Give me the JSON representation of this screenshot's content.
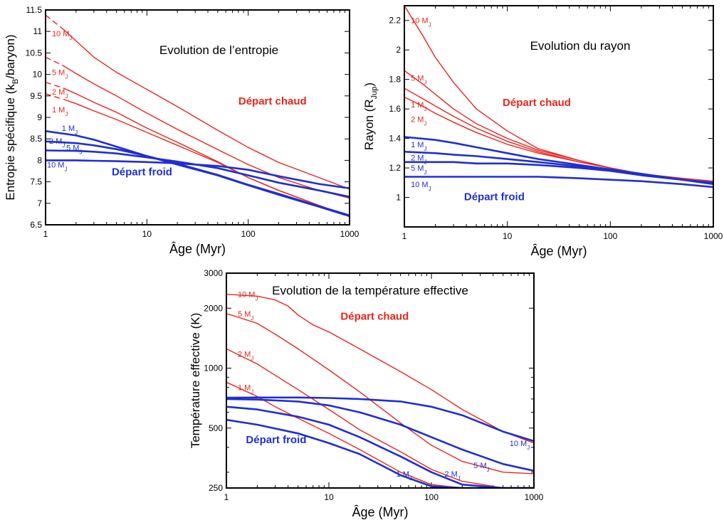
{
  "colors": {
    "hot": "#e8261c",
    "cold": "#1f2fd0",
    "axis": "#000000"
  },
  "chart_data": [
    {
      "type": "line",
      "title": "Evolution de l’entropie",
      "xlabel": "Âge (Myr)",
      "ylabel_main": "Entropie spécifique (k",
      "ylabel_sub": "B",
      "ylabel_tail": "/baryon)",
      "xscale": "log",
      "xlim": [
        1,
        1000
      ],
      "ylim": [
        6.5,
        11.5
      ],
      "xticks": [
        {
          "v": 1,
          "label": "1"
        },
        {
          "v": 10,
          "label": "10"
        },
        {
          "v": 100,
          "label": "100"
        },
        {
          "v": 1000,
          "label": "1000"
        }
      ],
      "yticks": [
        {
          "v": 6.5,
          "label": "6.5"
        },
        {
          "v": 7,
          "label": "7"
        },
        {
          "v": 7.5,
          "label": "7.5"
        },
        {
          "v": 8,
          "label": "8"
        },
        {
          "v": 8.5,
          "label": "8.5"
        },
        {
          "v": 9,
          "label": "9"
        },
        {
          "v": 9.5,
          "label": "9.5"
        },
        {
          "v": 10,
          "label": "10"
        },
        {
          "v": 10.5,
          "label": "10.5"
        },
        {
          "v": 11,
          "label": "11"
        },
        {
          "v": 11.5,
          "label": "11.5"
        }
      ],
      "annotations": [
        {
          "text": "Départ chaud",
          "group": "hot",
          "x": 80,
          "y": 9.3
        },
        {
          "text": "Départ froid",
          "group": "cold",
          "x": 4.5,
          "y": 7.65
        }
      ],
      "series": [
        {
          "label_main": "10 M",
          "label_sub": "J",
          "group": "hot",
          "label_at": [
            1.12,
            10.95
          ],
          "dashed_to": 1.8,
          "x": [
            1,
            1.5,
            2,
            3,
            5,
            10,
            20,
            50,
            100,
            200,
            500,
            1000
          ],
          "y": [
            11.38,
            11.05,
            10.78,
            10.4,
            10.05,
            9.65,
            9.25,
            8.7,
            8.3,
            7.95,
            7.6,
            7.33
          ]
        },
        {
          "label_main": "5 M",
          "label_sub": "J",
          "group": "hot",
          "label_at": [
            1.12,
            10.05
          ],
          "dashed_to": 1.8,
          "x": [
            1,
            1.5,
            2,
            3,
            5,
            10,
            20,
            50,
            100,
            200,
            500,
            1000
          ],
          "y": [
            10.4,
            10.2,
            10.02,
            9.78,
            9.5,
            9.1,
            8.72,
            8.25,
            7.9,
            7.6,
            7.3,
            7.12
          ]
        },
        {
          "label_main": "2 M",
          "label_sub": "J",
          "group": "hot",
          "label_at": [
            1.12,
            9.6
          ],
          "dashed_to": 1.8,
          "x": [
            1,
            1.5,
            2,
            3,
            5,
            10,
            20,
            50,
            100,
            200,
            500,
            1000
          ],
          "y": [
            9.82,
            9.68,
            9.55,
            9.35,
            9.12,
            8.75,
            8.42,
            7.97,
            7.6,
            7.3,
            6.95,
            6.7
          ]
        },
        {
          "label_main": "1 M",
          "label_sub": "J",
          "group": "hot",
          "label_at": [
            1.12,
            9.18
          ],
          "dashed_to": 1.8,
          "x": [
            1,
            1.5,
            2,
            3,
            5,
            10,
            20,
            50,
            100,
            200,
            500,
            1000
          ],
          "y": [
            9.55,
            9.42,
            9.32,
            9.15,
            8.95,
            8.65,
            8.35,
            7.95,
            7.6,
            7.3,
            6.95,
            6.7
          ]
        },
        {
          "label_main": "1 M",
          "label_sub": "J",
          "group": "cold",
          "label_at": [
            1.4,
            8.75
          ],
          "x": [
            1,
            2,
            3,
            5,
            10,
            20,
            50,
            100,
            200,
            500,
            1000
          ],
          "y": [
            8.68,
            8.58,
            8.48,
            8.32,
            8.1,
            7.9,
            7.65,
            7.42,
            7.2,
            6.92,
            6.7
          ]
        },
        {
          "label_main": "2 M",
          "label_sub": "J",
          "group": "cold",
          "label_at": [
            1.05,
            8.45
          ],
          "x": [
            1,
            2,
            3,
            5,
            10,
            20,
            50,
            100,
            200,
            500,
            1000
          ],
          "y": [
            8.44,
            8.4,
            8.35,
            8.26,
            8.1,
            7.92,
            7.66,
            7.43,
            7.22,
            6.93,
            6.72
          ]
        },
        {
          "label_main": "5 M",
          "label_sub": "J",
          "group": "cold",
          "label_at": [
            1.55,
            8.3
          ],
          "x": [
            1,
            2,
            3,
            5,
            10,
            20,
            50,
            100,
            200,
            500,
            1000
          ],
          "y": [
            8.23,
            8.22,
            8.2,
            8.16,
            8.07,
            7.97,
            7.82,
            7.65,
            7.48,
            7.3,
            7.15
          ]
        },
        {
          "label_main": "10 M",
          "label_sub": "J",
          "group": "cold",
          "label_at": [
            1.0,
            7.9
          ],
          "x": [
            1,
            2,
            3,
            5,
            10,
            20,
            50,
            100,
            200,
            500,
            1000
          ],
          "y": [
            8.0,
            8.0,
            7.99,
            7.98,
            7.96,
            7.93,
            7.87,
            7.78,
            7.63,
            7.45,
            7.35
          ]
        }
      ]
    },
    {
      "type": "line",
      "title": "Evolution du rayon",
      "xlabel": "Âge (Myr)",
      "ylabel_main": "Rayon (R",
      "ylabel_sub": "Jup",
      "ylabel_tail": ")",
      "xscale": "log",
      "xlim": [
        1,
        1000
      ],
      "ylim": [
        0.8,
        2.3
      ],
      "xticks": [
        {
          "v": 1,
          "label": "1"
        },
        {
          "v": 10,
          "label": "10"
        },
        {
          "v": 100,
          "label": "100"
        },
        {
          "v": 1000,
          "label": "1000"
        }
      ],
      "yticks": [
        {
          "v": 1,
          "label": "1"
        },
        {
          "v": 1.2,
          "label": "1.2"
        },
        {
          "v": 1.4,
          "label": "1.4"
        },
        {
          "v": 1.6,
          "label": "1.6"
        },
        {
          "v": 1.8,
          "label": "1.8"
        },
        {
          "v": 2,
          "label": "2"
        },
        {
          "v": 2.2,
          "label": "2.2"
        }
      ],
      "annotations": [
        {
          "text": "Départ chaud",
          "group": "hot",
          "x": 9,
          "y": 1.62
        },
        {
          "text": "Départ froid",
          "group": "cold",
          "x": 3.8,
          "y": 0.98
        }
      ],
      "series": [
        {
          "label_main": "10 M",
          "label_sub": "J",
          "group": "hot",
          "label_at": [
            1.12,
            2.2
          ],
          "x": [
            1,
            1.5,
            2,
            3,
            5,
            10,
            20,
            50,
            100,
            200,
            500,
            1000
          ],
          "y": [
            2.3,
            2.1,
            1.95,
            1.78,
            1.6,
            1.45,
            1.33,
            1.25,
            1.2,
            1.16,
            1.13,
            1.11
          ]
        },
        {
          "label_main": "5 M",
          "label_sub": "J",
          "group": "hot",
          "label_at": [
            1.12,
            1.81
          ],
          "dashed_to": 1.45,
          "x": [
            1,
            1.5,
            2,
            3,
            5,
            10,
            20,
            50,
            100,
            200,
            500,
            1000
          ],
          "y": [
            1.86,
            1.77,
            1.7,
            1.6,
            1.5,
            1.4,
            1.32,
            1.25,
            1.2,
            1.16,
            1.12,
            1.1
          ]
        },
        {
          "label_main": "1 M",
          "label_sub": "J",
          "group": "hot",
          "label_at": [
            1.12,
            1.63
          ],
          "dashed_to": 1.45,
          "x": [
            1,
            1.5,
            2,
            3,
            5,
            10,
            20,
            50,
            100,
            200,
            500,
            1000
          ],
          "y": [
            1.74,
            1.67,
            1.62,
            1.55,
            1.47,
            1.38,
            1.31,
            1.24,
            1.2,
            1.16,
            1.12,
            1.1
          ]
        },
        {
          "label_main": "2 M",
          "label_sub": "J",
          "group": "hot",
          "label_at": [
            1.12,
            1.53
          ],
          "dashed_to": 1.45,
          "x": [
            1,
            1.5,
            2,
            3,
            5,
            10,
            20,
            50,
            100,
            200,
            500,
            1000
          ],
          "y": [
            1.68,
            1.62,
            1.57,
            1.51,
            1.44,
            1.36,
            1.3,
            1.24,
            1.2,
            1.16,
            1.12,
            1.09
          ]
        },
        {
          "label_main": "1 M",
          "label_sub": "J",
          "group": "cold",
          "label_at": [
            1.12,
            1.36
          ],
          "x": [
            1,
            2,
            3,
            5,
            10,
            20,
            50,
            100,
            200,
            500,
            1000
          ],
          "y": [
            1.41,
            1.39,
            1.37,
            1.34,
            1.3,
            1.26,
            1.22,
            1.19,
            1.16,
            1.12,
            1.1
          ]
        },
        {
          "label_main": "2 M",
          "label_sub": "J",
          "group": "cold",
          "label_at": [
            1.12,
            1.27
          ],
          "x": [
            1,
            2,
            3,
            5,
            10,
            20,
            50,
            100,
            200,
            500,
            1000
          ],
          "y": [
            1.31,
            1.3,
            1.29,
            1.28,
            1.26,
            1.24,
            1.21,
            1.19,
            1.16,
            1.12,
            1.1
          ]
        },
        {
          "label_main": "5 M",
          "label_sub": "J",
          "group": "cold",
          "label_at": [
            1.12,
            1.2
          ],
          "x": [
            1,
            2,
            3,
            5,
            10,
            20,
            50,
            100,
            200,
            500,
            1000
          ],
          "y": [
            1.24,
            1.24,
            1.24,
            1.23,
            1.23,
            1.22,
            1.2,
            1.18,
            1.15,
            1.12,
            1.09
          ]
        },
        {
          "label_main": "10 M",
          "label_sub": "J",
          "group": "cold",
          "label_at": [
            1.12,
            1.09
          ],
          "x": [
            1,
            2,
            3,
            5,
            10,
            20,
            50,
            100,
            200,
            500,
            1000
          ],
          "y": [
            1.14,
            1.14,
            1.14,
            1.14,
            1.14,
            1.14,
            1.13,
            1.12,
            1.11,
            1.09,
            1.07
          ]
        }
      ]
    },
    {
      "type": "line",
      "title": "Evolution de la température effective",
      "xlabel": "Âge (Myr)",
      "ylabel_main": "Température effective (K)",
      "ylabel_sub": "",
      "ylabel_tail": "",
      "xscale": "log",
      "yscale": "log",
      "xlim": [
        1,
        1000
      ],
      "ylim": [
        250,
        3000
      ],
      "xticks": [
        {
          "v": 1,
          "label": "1"
        },
        {
          "v": 10,
          "label": "10"
        },
        {
          "v": 100,
          "label": "100"
        },
        {
          "v": 1000,
          "label": "1000"
        }
      ],
      "yticks": [
        {
          "v": 250,
          "label": "250"
        },
        {
          "v": 500,
          "label": "500"
        },
        {
          "v": 1000,
          "label": "1000"
        },
        {
          "v": 2000,
          "label": "2000"
        },
        {
          "v": 3000,
          "label": "3000"
        }
      ],
      "annotations": [
        {
          "text": "Départ chaud",
          "group": "hot",
          "x": 13,
          "y": 1750
        },
        {
          "text": "Départ froid",
          "group": "cold",
          "x": 1.55,
          "y": 420
        }
      ],
      "series": [
        {
          "label_main": "10 M",
          "label_sub": "J",
          "group": "hot",
          "label_at": [
            1.25,
            2350
          ],
          "x": [
            1,
            2,
            3,
            4,
            5,
            7,
            10,
            20,
            50,
            100,
            200,
            500,
            1000
          ],
          "y": [
            2350,
            2300,
            2200,
            2050,
            1850,
            1650,
            1520,
            1250,
            960,
            780,
            620,
            480,
            420
          ]
        },
        {
          "label_main": "5 M",
          "label_sub": "J",
          "group": "hot",
          "label_at": [
            1.25,
            1880
          ],
          "x": [
            1,
            2,
            3,
            5,
            10,
            20,
            50,
            100,
            200,
            500,
            1000
          ],
          "y": [
            1880,
            1680,
            1480,
            1250,
            980,
            760,
            530,
            410,
            340,
            300,
            295
          ]
        },
        {
          "label_main": "2 M",
          "label_sub": "J",
          "group": "hot",
          "label_at": [
            1.25,
            1180
          ],
          "x": [
            1,
            2,
            3,
            5,
            10,
            20,
            50,
            100,
            200,
            500,
            1000
          ],
          "y": [
            1250,
            1050,
            920,
            780,
            620,
            490,
            380,
            310,
            270,
            250,
            250
          ]
        },
        {
          "label_main": "1 M",
          "label_sub": "J",
          "group": "hot",
          "label_at": [
            1.25,
            800
          ],
          "x": [
            1,
            2,
            3,
            5,
            10,
            20,
            50,
            100,
            200,
            500,
            1000
          ],
          "y": [
            850,
            720,
            640,
            560,
            470,
            390,
            300,
            260,
            250,
            250,
            250
          ]
        },
        {
          "label_main": "10 M",
          "label_sub": "J",
          "group": "cold",
          "label_at": [
            560,
            420
          ],
          "x": [
            1,
            2,
            5,
            10,
            20,
            50,
            100,
            200,
            500,
            1000
          ],
          "y": [
            710,
            712,
            712,
            708,
            700,
            680,
            640,
            580,
            480,
            430
          ]
        },
        {
          "label_main": "5 M",
          "label_sub": "J",
          "group": "cold",
          "label_at": [
            250,
            325
          ],
          "x": [
            1,
            2,
            5,
            10,
            20,
            50,
            100,
            200,
            500,
            1000
          ],
          "y": [
            700,
            695,
            680,
            650,
            600,
            520,
            450,
            390,
            330,
            305
          ]
        },
        {
          "label_main": "2 M",
          "label_sub": "J",
          "group": "cold",
          "label_at": [
            130,
            295
          ],
          "x": [
            1,
            2,
            5,
            10,
            20,
            50,
            100,
            200,
            500,
            1000
          ],
          "y": [
            640,
            620,
            570,
            520,
            450,
            360,
            300,
            260,
            250,
            250
          ]
        },
        {
          "label_main": "1 M",
          "label_sub": "J",
          "group": "cold",
          "label_at": [
            44,
            295
          ],
          "x": [
            1,
            2,
            5,
            10,
            20,
            50,
            100,
            200,
            500,
            1000
          ],
          "y": [
            550,
            520,
            470,
            420,
            370,
            290,
            255,
            250,
            250,
            250
          ]
        }
      ]
    }
  ]
}
